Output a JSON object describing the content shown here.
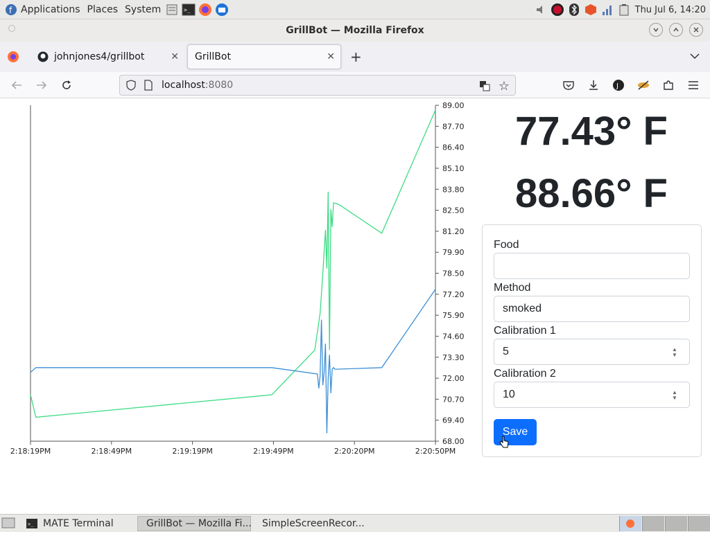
{
  "top_panel": {
    "menus": [
      "Applications",
      "Places",
      "System"
    ],
    "clock": "Thu Jul 6, 14:20"
  },
  "window": {
    "title": "GrillBot — Mozilla Firefox"
  },
  "tabs": [
    {
      "label": "johnjones4/grillbot",
      "active": false
    },
    {
      "label": "GrillBot",
      "active": true
    }
  ],
  "url": {
    "host": "localhost",
    "port": ":8080"
  },
  "temps": {
    "temp1": "77.43° F",
    "temp2": "88.66° F"
  },
  "form": {
    "food_label": "Food",
    "food_value": "",
    "method_label": "Method",
    "method_value": "smoked",
    "cal1_label": "Calibration 1",
    "cal1_value": "5",
    "cal2_label": "Calibration 2",
    "cal2_value": "10",
    "save_label": "Save"
  },
  "taskbar": [
    {
      "label": "MATE Terminal",
      "active": false
    },
    {
      "label": "GrillBot — Mozilla Fi...",
      "active": true
    },
    {
      "label": "SimpleScreenRecor...",
      "active": false
    }
  ],
  "colors": {
    "series_green": "#3ddc84",
    "series_blue": "#3b8fd6",
    "accent": "#0d6efd"
  },
  "chart_data": {
    "type": "line",
    "x_tick_labels": [
      "2:18:19PM",
      "2:18:49PM",
      "2:19:19PM",
      "2:19:49PM",
      "2:20:20PM",
      "2:20:50PM"
    ],
    "y_tick_labels": [
      "89.00",
      "87.70",
      "86.40",
      "85.10",
      "83.80",
      "82.50",
      "81.20",
      "79.90",
      "78.50",
      "77.20",
      "75.90",
      "74.60",
      "73.30",
      "72.00",
      "70.70",
      "69.40",
      "68.00"
    ],
    "xlim_seconds": [
      0,
      151
    ],
    "ylim": [
      68.0,
      89.0
    ],
    "series": [
      {
        "color": "#3ddc84",
        "x": [
          0,
          2,
          90,
          106,
          108,
          109,
          110,
          110.5,
          111,
          111.5,
          112,
          112.5,
          113,
          115,
          131,
          151
        ],
        "y": [
          70.9,
          69.5,
          70.9,
          73.7,
          76.0,
          78.5,
          81.2,
          78.8,
          83.6,
          73.7,
          82.5,
          81.4,
          82.9,
          82.8,
          81.0,
          88.7
        ]
      },
      {
        "color": "#3b8fd6",
        "x": [
          0,
          2,
          90,
          107,
          107.5,
          108,
          108.5,
          109,
          109.5,
          110,
          110.5,
          111,
          111.5,
          112,
          112.5,
          113,
          113.5,
          131,
          151
        ],
        "y": [
          72.3,
          72.6,
          72.6,
          72.2,
          71.3,
          72.1,
          75.6,
          71.5,
          72.3,
          74.1,
          68.5,
          71.9,
          73.4,
          71.0,
          72.5,
          72.6,
          72.5,
          72.6,
          77.5
        ]
      }
    ]
  }
}
